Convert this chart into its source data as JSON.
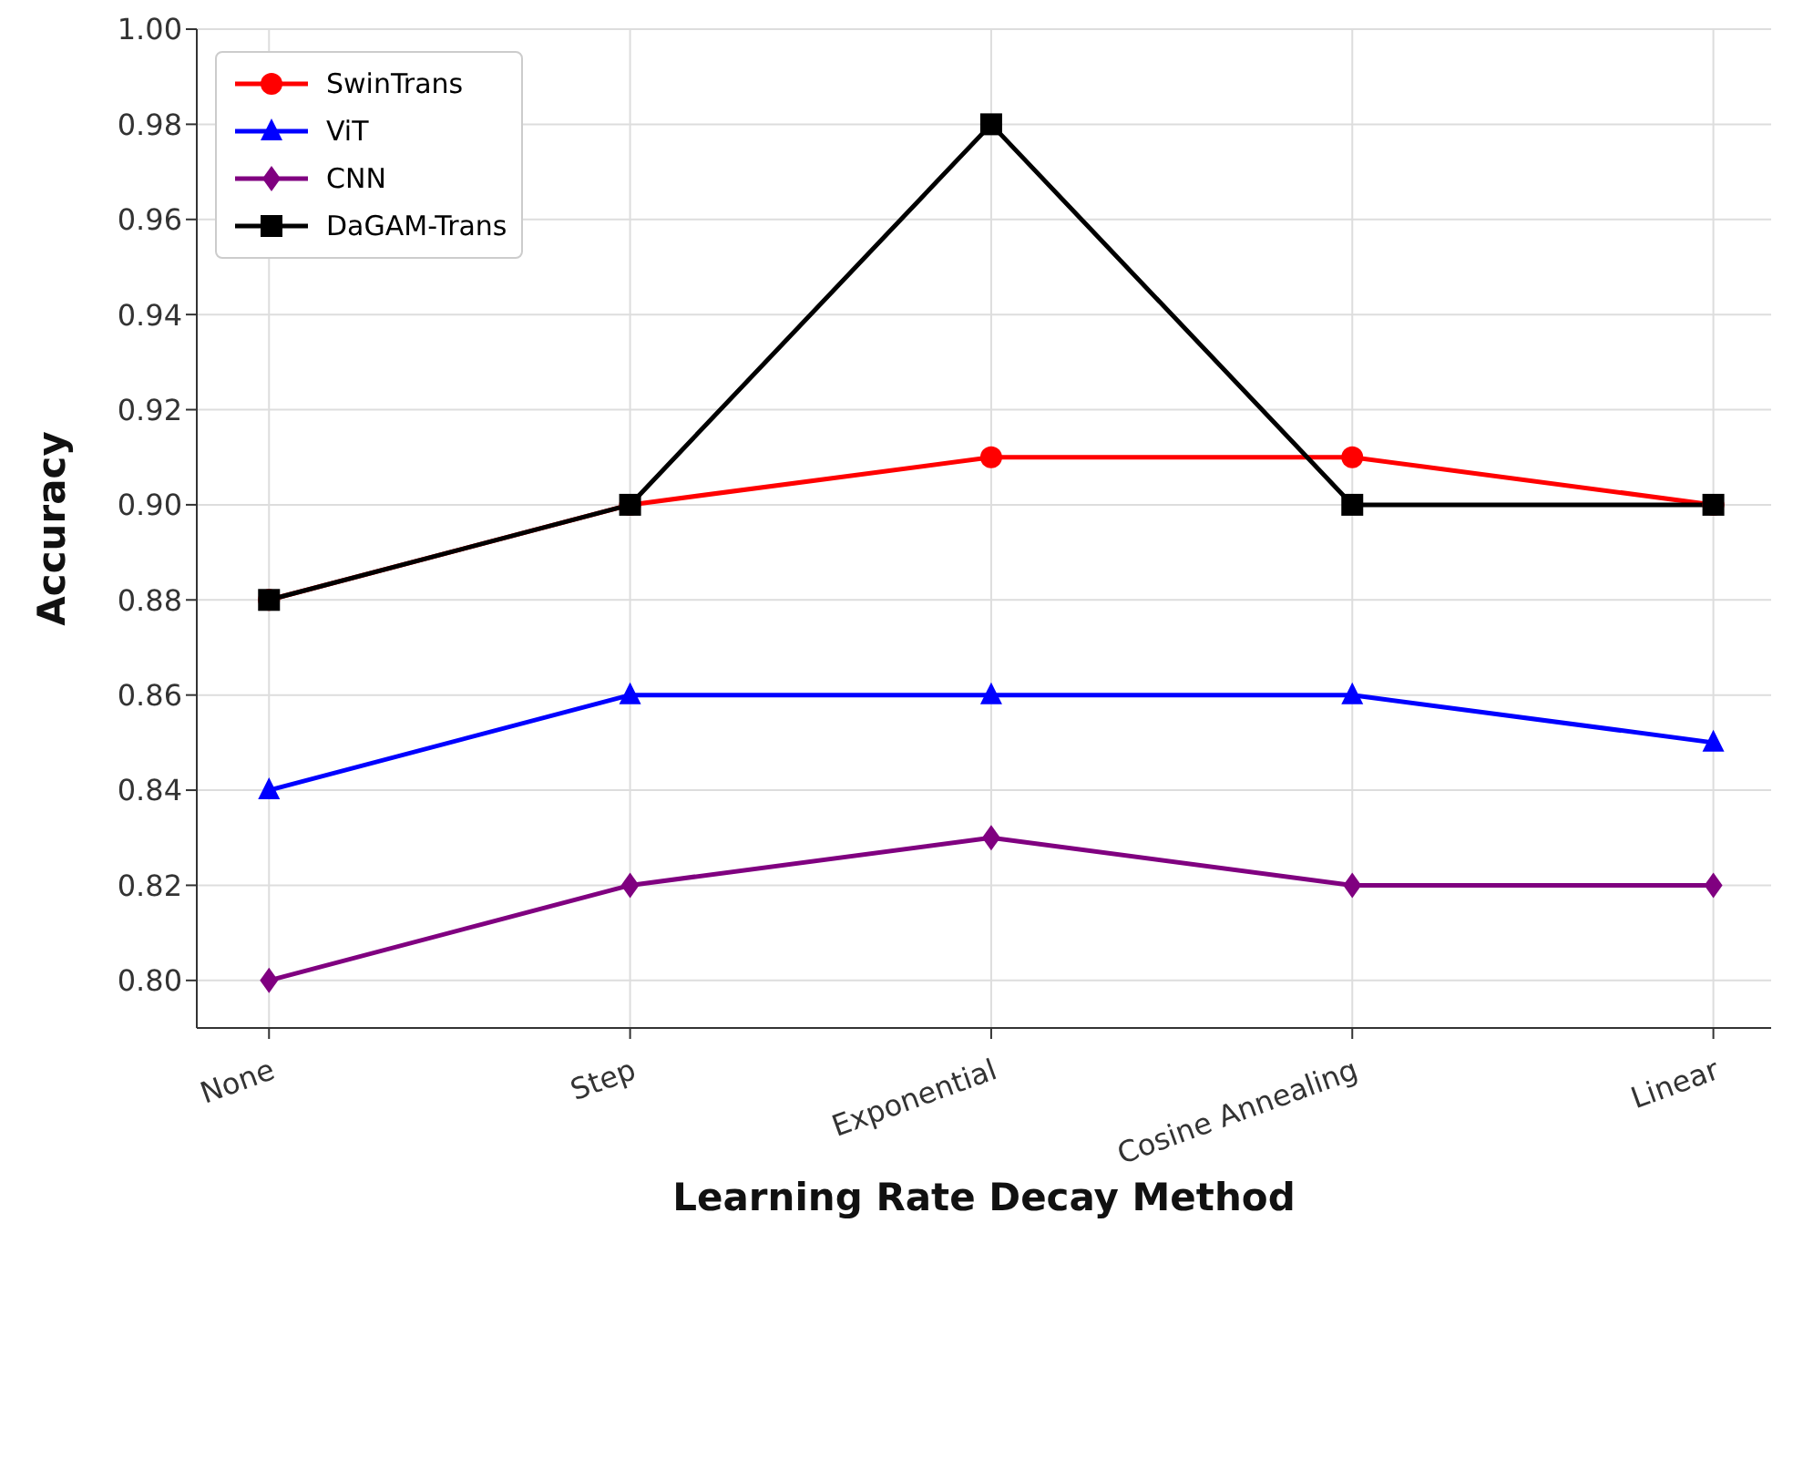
{
  "chart_data": {
    "type": "line",
    "xlabel": "Learning Rate Decay Method",
    "ylabel": "Accuracy",
    "categories": [
      "None",
      "Step",
      "Exponential",
      "Cosine Annealing",
      "Linear"
    ],
    "series": [
      {
        "name": "SwinTrans",
        "color": "#ff0000",
        "marker": "circle",
        "values": [
          0.88,
          0.9,
          0.91,
          0.91,
          0.9
        ]
      },
      {
        "name": "ViT",
        "color": "#0000ff",
        "marker": "triangle",
        "values": [
          0.84,
          0.86,
          0.86,
          0.86,
          0.85
        ]
      },
      {
        "name": "CNN",
        "color": "#800080",
        "marker": "diamond",
        "values": [
          0.8,
          0.82,
          0.83,
          0.82,
          0.82
        ]
      },
      {
        "name": "DaGAM-Trans",
        "color": "#000000",
        "marker": "square",
        "values": [
          0.88,
          0.9,
          0.98,
          0.9,
          0.9
        ]
      }
    ],
    "ylim": [
      0.79,
      1.0
    ],
    "yticks": [
      {
        "value": 0.8,
        "label": "0.80"
      },
      {
        "value": 0.82,
        "label": "0.82"
      },
      {
        "value": 0.84,
        "label": "0.84"
      },
      {
        "value": 0.86,
        "label": "0.86"
      },
      {
        "value": 0.88,
        "label": "0.88"
      },
      {
        "value": 0.9,
        "label": "0.90"
      },
      {
        "value": 0.92,
        "label": "0.92"
      },
      {
        "value": 0.94,
        "label": "0.94"
      },
      {
        "value": 0.96,
        "label": "0.96"
      },
      {
        "value": 0.98,
        "label": "0.98"
      },
      {
        "value": 1.0,
        "label": "1.00"
      }
    ],
    "grid": true,
    "legend": "top left",
    "line_style": "solid"
  }
}
